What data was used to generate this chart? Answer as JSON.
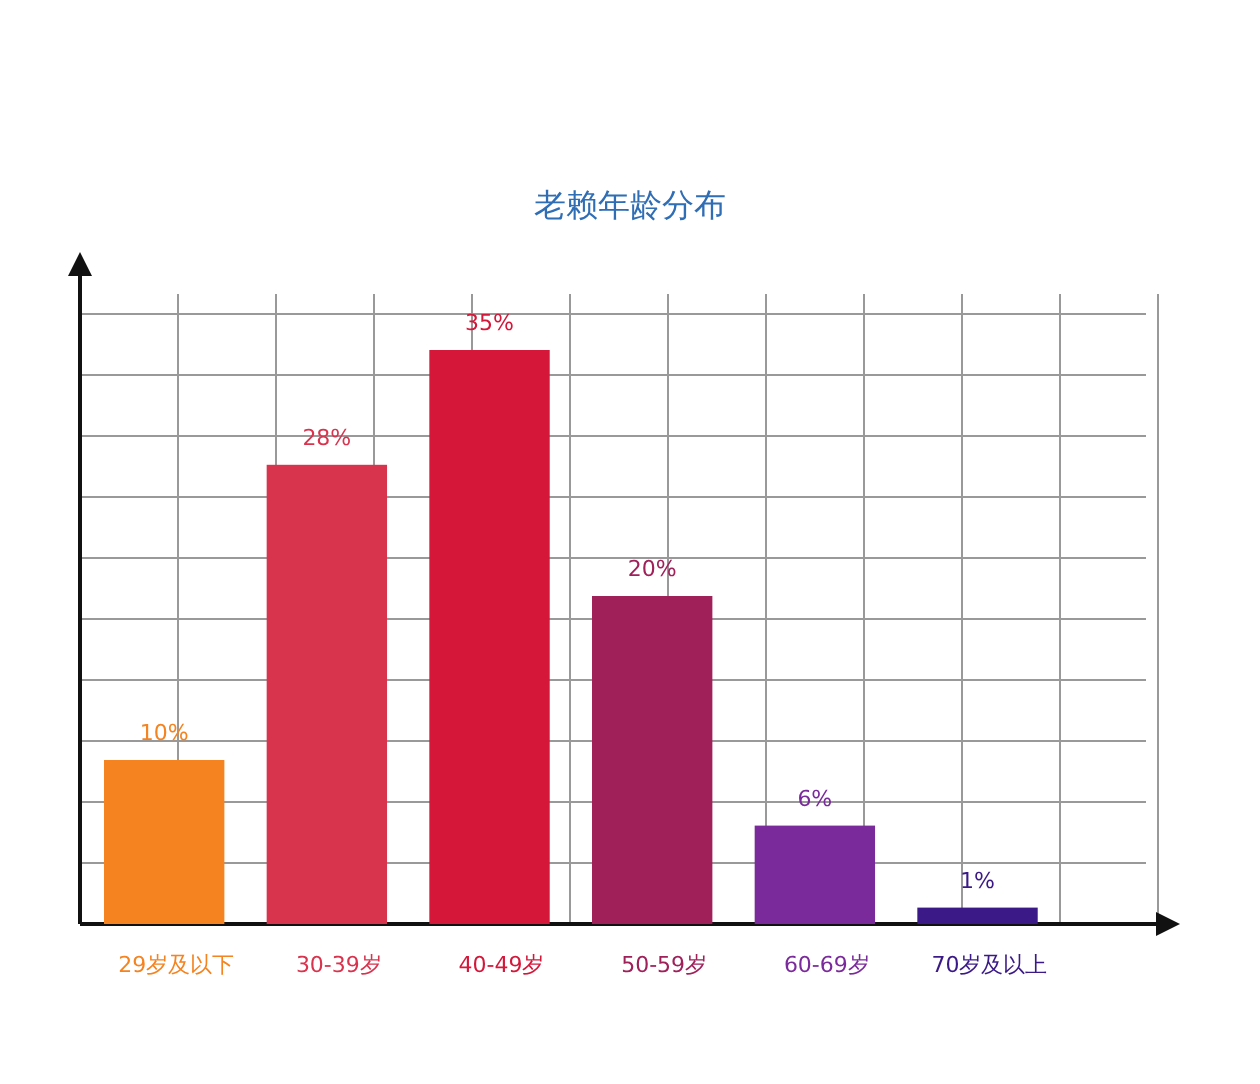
{
  "chart_data": {
    "type": "bar",
    "title": "老赖年龄分布",
    "categories": [
      "29岁及以下",
      "30-39岁",
      "40-49岁",
      "50-59岁",
      "60-69岁",
      "70岁及以上"
    ],
    "values": [
      10,
      28,
      35,
      20,
      6,
      1
    ],
    "colors": [
      "#f5831f",
      "#d8344e",
      "#d5173a",
      "#a0205a",
      "#7b2a9c",
      "#3b1a87"
    ],
    "value_labels": [
      "10%",
      "28%",
      "35%",
      "20%",
      "6%",
      "1%"
    ],
    "grid": true
  }
}
